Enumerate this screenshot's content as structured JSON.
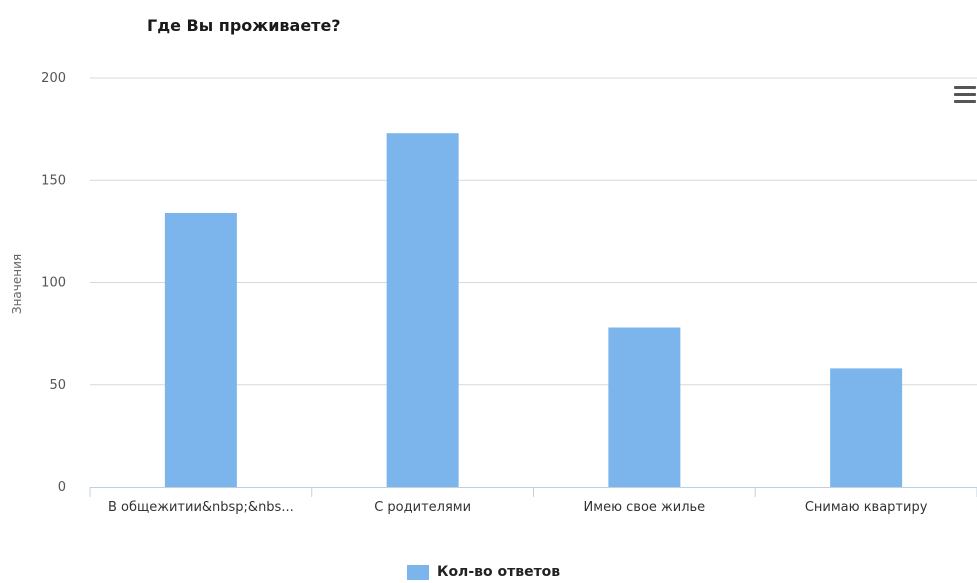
{
  "chart_data": {
    "type": "bar",
    "title": "Где Вы проживаете?",
    "ylabel": "Значения",
    "xlabel": "",
    "ylim": [
      0,
      200
    ],
    "yticks": [
      0,
      50,
      100,
      150,
      200
    ],
    "categories": [
      "В общежитии&nbsp;&nbs...",
      "С родителями",
      "Имею свое жилье",
      "Снимаю квартиру"
    ],
    "series": [
      {
        "name": "Кол-во ответов",
        "values": [
          134,
          173,
          78,
          58
        ],
        "color": "#7cb5ec"
      }
    ],
    "grid": true,
    "legend_position": "bottom-center"
  },
  "menu": {
    "icon": "hamburger-menu-icon"
  }
}
